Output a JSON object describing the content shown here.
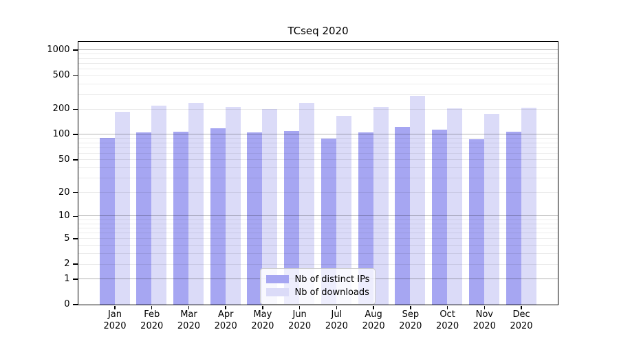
{
  "title": "TCseq 2020",
  "chart_data": {
    "type": "bar",
    "title": "TCseq 2020",
    "categories": [
      "Jan",
      "Feb",
      "Mar",
      "Apr",
      "May",
      "Jun",
      "Jul",
      "Aug",
      "Sep",
      "Oct",
      "Nov",
      "Dec"
    ],
    "category_year": "2020",
    "series": [
      {
        "name": "Nb of distinct IPs",
        "color": "#a6a6f2",
        "values": [
          91,
          106,
          108,
          117,
          106,
          110,
          89,
          106,
          122,
          113,
          88,
          108
        ]
      },
      {
        "name": "Nb of downloads",
        "color": "#dbdbf8",
        "values": [
          186,
          219,
          236,
          211,
          199,
          236,
          166,
          210,
          285,
          204,
          176,
          208
        ]
      }
    ],
    "yscale": "log1p",
    "ylim": [
      0,
      1253
    ],
    "yticks": [
      0,
      1,
      2,
      5,
      10,
      20,
      50,
      100,
      200,
      500,
      1000
    ],
    "grid": "major-and-minor, darker lines at powers of 10",
    "legend_position": "bottom-center",
    "xlabel": "",
    "ylabel": ""
  }
}
